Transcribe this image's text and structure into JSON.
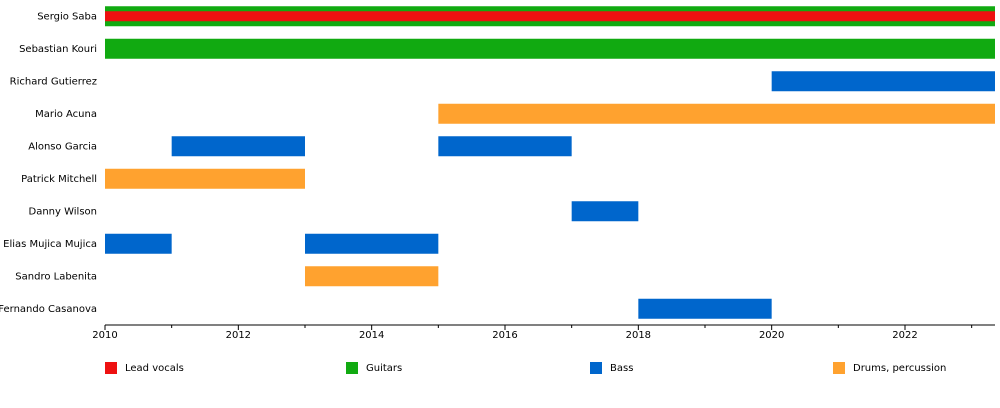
{
  "chart_data": {
    "type": "timeline",
    "categories": [
      "Sergio Saba",
      "Sebastian Kouri",
      "Richard Gutierrez",
      "Mario Acuna",
      "Alonso Garcia",
      "Patrick Mitchell",
      "Danny Wilson",
      "Elias Mujica Mujica",
      "Sandro Labenita",
      "Fernando Casanova"
    ],
    "xlim": [
      2010,
      2023.35
    ],
    "xticks": [
      2010,
      2012,
      2014,
      2016,
      2018,
      2020,
      2022
    ],
    "xticks_minor": [
      2011,
      2013,
      2015,
      2017,
      2019,
      2021,
      2023
    ],
    "series": [
      {
        "name": "Lead vocals",
        "color": "#ee1111",
        "bars": [
          {
            "member": "Sergio Saba",
            "start": 2010,
            "end": 2023.35
          }
        ]
      },
      {
        "name": "Guitars",
        "color": "#11aa11",
        "bars": [
          {
            "member": "Sergio Saba",
            "start": 2010,
            "end": 2023.35
          },
          {
            "member": "Sebastian Kouri",
            "start": 2010,
            "end": 2023.35
          }
        ]
      },
      {
        "name": "Bass",
        "color": "#0066cc",
        "bars": [
          {
            "member": "Richard Gutierrez",
            "start": 2020,
            "end": 2023.35
          },
          {
            "member": "Alonso Garcia",
            "start": 2011,
            "end": 2013
          },
          {
            "member": "Alonso Garcia",
            "start": 2015,
            "end": 2017
          },
          {
            "member": "Danny Wilson",
            "start": 2017,
            "end": 2018
          },
          {
            "member": "Elias Mujica Mujica",
            "start": 2010,
            "end": 2011
          },
          {
            "member": "Elias Mujica Mujica",
            "start": 2013,
            "end": 2015
          },
          {
            "member": "Fernando Casanova",
            "start": 2018,
            "end": 2020
          }
        ]
      },
      {
        "name": "Drums, percussion",
        "color": "#ffa22f",
        "bars": [
          {
            "member": "Mario Acuna",
            "start": 2015,
            "end": 2023.35
          },
          {
            "member": "Patrick Mitchell",
            "start": 2010,
            "end": 2013
          },
          {
            "member": "Sandro Labenita",
            "start": 2013,
            "end": 2015
          }
        ]
      }
    ]
  }
}
